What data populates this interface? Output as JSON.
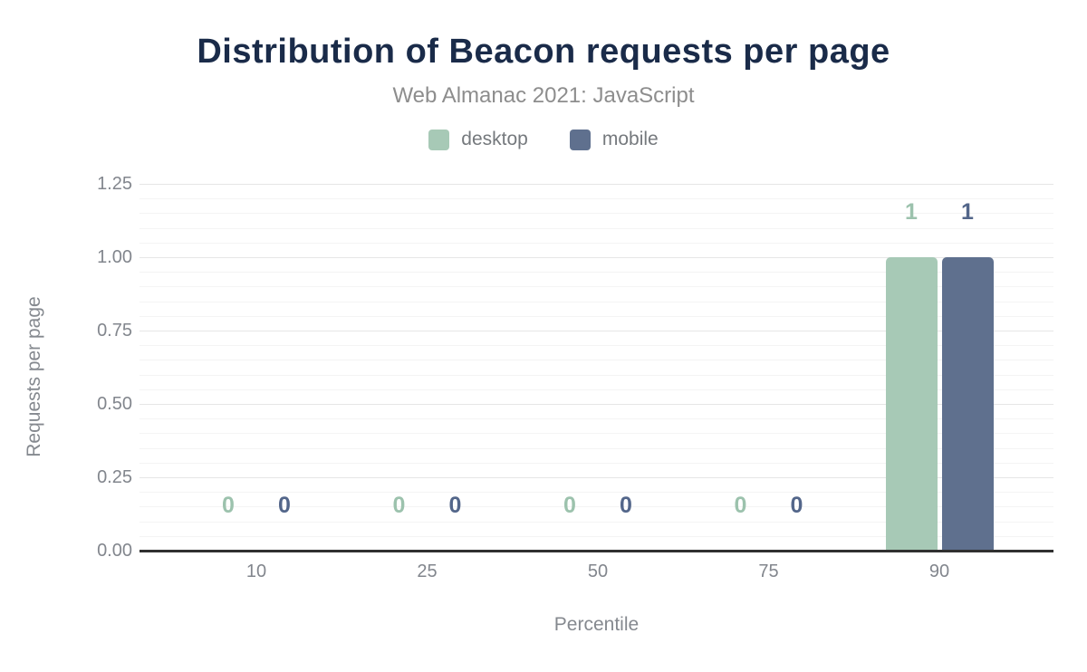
{
  "header": {
    "title": "Distribution of Beacon requests per page",
    "subtitle": "Web Almanac 2021: JavaScript"
  },
  "chart_data": {
    "type": "bar",
    "title": "Distribution of Beacon requests per page",
    "subtitle": "Web Almanac 2021: JavaScript",
    "categories": [
      "10",
      "25",
      "50",
      "75",
      "90"
    ],
    "series": [
      {
        "name": "desktop",
        "color": "#a7c9b6",
        "label_color": "#9cc2ad",
        "values": [
          0,
          0,
          0,
          0,
          1
        ]
      },
      {
        "name": "mobile",
        "color": "#5f708e",
        "label_color": "#53668a",
        "values": [
          0,
          0,
          0,
          0,
          1
        ]
      }
    ],
    "xlabel": "Percentile",
    "ylabel": "Requests per page",
    "ylim": [
      0,
      1.25
    ],
    "y_ticks": [
      "0.00",
      "0.25",
      "0.50",
      "0.75",
      "1.00",
      "1.25"
    ],
    "grid": "horizontal, minor every 0.05, major every 0.25",
    "legend_position": "top"
  },
  "colors": {
    "title": "#1a2b49",
    "subtitle": "#8d8d8d",
    "axis_text": "#82868d",
    "baseline": "#303030",
    "grid_major": "#e6e6e6",
    "grid_minor": "#f4f4f4",
    "background": "#ffffff"
  }
}
